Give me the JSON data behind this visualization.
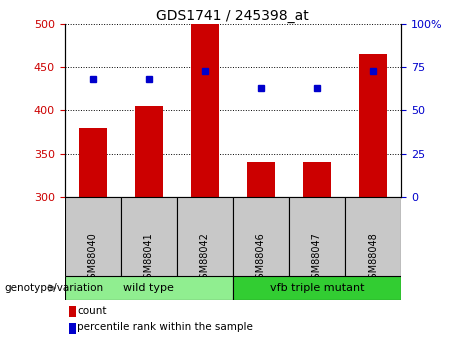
{
  "title": "GDS1741 / 245398_at",
  "categories": [
    "GSM88040",
    "GSM88041",
    "GSM88042",
    "GSM88046",
    "GSM88047",
    "GSM88048"
  ],
  "bar_values": [
    380,
    405,
    500,
    340,
    340,
    465
  ],
  "bar_base": 300,
  "scatter_values": [
    68,
    68,
    73,
    63,
    63,
    73
  ],
  "left_ylim": [
    300,
    500
  ],
  "right_ylim": [
    0,
    100
  ],
  "left_yticks": [
    300,
    350,
    400,
    450,
    500
  ],
  "right_yticks": [
    0,
    25,
    50,
    75,
    100
  ],
  "bar_color": "#cc0000",
  "scatter_color": "#0000cc",
  "grid_color": "#000000",
  "background_color": "#ffffff",
  "plot_bg": "#ffffff",
  "group1_label": "wild type",
  "group2_label": "vfb triple mutant",
  "group1_color": "#90ee90",
  "group2_color": "#32cd32",
  "group_bg_color": "#c8c8c8",
  "legend_count_label": "count",
  "legend_pct_label": "percentile rank within the sample",
  "genotype_label": "genotype/variation",
  "left_ylabel_color": "#cc0000",
  "right_ylabel_color": "#0000cc",
  "arrow_color": "#888888"
}
